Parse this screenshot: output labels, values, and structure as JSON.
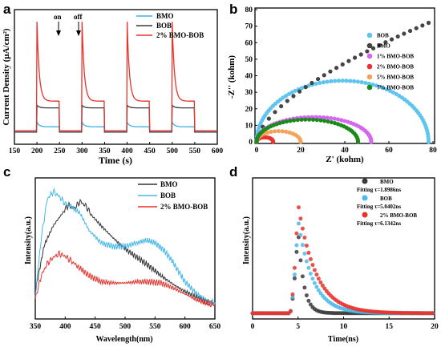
{
  "chart_data": [
    {
      "panel": "a",
      "type": "line",
      "xlabel": "Time (s)",
      "ylabel": "Current Density (μA/cm²)",
      "xlim": [
        150,
        600
      ],
      "xticks": [
        150,
        200,
        250,
        300,
        350,
        400,
        450,
        500,
        550,
        600
      ],
      "annotations": [
        "on",
        "off"
      ],
      "series": [
        {
          "name": "BMO",
          "color": "#3fb0e8",
          "base": 4.5,
          "plateau": 6.5,
          "spike": 8.2
        },
        {
          "name": "BOB",
          "color": "#3a3a3a",
          "base": 4.5,
          "plateau": 13.5,
          "spike": 14.5
        },
        {
          "name": "2% BMO-BOB",
          "color": "#e8322c",
          "base": 5.0,
          "plateau": 16.0,
          "spike": 45.5
        }
      ],
      "on_times": [
        200,
        300,
        400,
        500
      ],
      "off_times": [
        250,
        350,
        450,
        550
      ],
      "ylim": [
        0,
        50
      ]
    },
    {
      "panel": "b",
      "type": "scatter",
      "xlabel": "Z' (kohm)",
      "ylabel": "-Z'' (kohm)",
      "xlim": [
        0,
        80
      ],
      "ylim": [
        0,
        80
      ],
      "xticks": [
        0,
        20,
        40,
        60,
        80
      ],
      "yticks": [
        0,
        10,
        20,
        30,
        40,
        50,
        60,
        70,
        80
      ],
      "series": [
        {
          "name": "BOB",
          "color": "#5ec5f0",
          "shape": "semicircle",
          "R": 78,
          "hmax": 37
        },
        {
          "name": "BMO",
          "color": "#444444",
          "shape": "arc",
          "R": 80,
          "end_x": 78,
          "end_y": 72
        },
        {
          "name": "1% BMO-BOB",
          "color": "#d466f0",
          "shape": "semicircle",
          "R": 52,
          "hmax": 15
        },
        {
          "name": "2% BMO-BOB",
          "color": "#ee3030",
          "shape": "semicircle",
          "R": 7.5,
          "hmax": 2.8
        },
        {
          "name": "5% BMO-BOB",
          "color": "#f5a25a",
          "shape": "semicircle",
          "R": 20,
          "hmax": 6.5
        },
        {
          "name": "7% BMO-BOB",
          "color": "#1a8a1a",
          "shape": "semicircle",
          "R": 46,
          "hmax": 13.5
        }
      ]
    },
    {
      "panel": "c",
      "type": "line",
      "xlabel": "Wavelength(nm)",
      "ylabel": "Intensity(a.u.)",
      "xlim": [
        350,
        650
      ],
      "xticks": [
        350,
        400,
        450,
        500,
        550,
        600,
        650
      ],
      "series": [
        {
          "name": "BMO",
          "color": "#333333",
          "x": [
            350,
            365,
            380,
            395,
            405,
            415,
            425,
            435,
            445,
            460,
            480,
            500,
            520,
            540,
            560,
            580,
            600,
            620,
            640,
            650
          ],
          "y": [
            12,
            50,
            66,
            76,
            83,
            80,
            86,
            82,
            74,
            66,
            56,
            47,
            40,
            33,
            25,
            18,
            12,
            7,
            3,
            2
          ]
        },
        {
          "name": "BOB",
          "color": "#43b6ea",
          "x": [
            350,
            360,
            370,
            380,
            390,
            400,
            410,
            425,
            440,
            460,
            480,
            500,
            520,
            535,
            550,
            565,
            580,
            600,
            620,
            640,
            650
          ],
          "y": [
            8,
            56,
            88,
            94,
            90,
            84,
            82,
            76,
            62,
            52,
            49,
            49,
            52,
            54,
            52,
            46,
            36,
            20,
            10,
            4,
            3
          ]
        },
        {
          "name": "2% BMO-BOB",
          "color": "#e8322c",
          "x": [
            350,
            360,
            370,
            380,
            390,
            400,
            410,
            420,
            440,
            460,
            480,
            500,
            520,
            540,
            560,
            580,
            600,
            620,
            640,
            650
          ],
          "y": [
            6,
            25,
            35,
            40,
            43,
            41,
            37,
            33,
            25,
            20,
            19,
            19,
            20,
            20,
            19,
            15,
            10,
            5,
            2,
            1
          ]
        }
      ],
      "ylim": [
        0,
        100
      ]
    },
    {
      "panel": "d",
      "type": "scatter",
      "xlabel": "Time(ns)",
      "ylabel": "Intensity(a.u.)",
      "xlim": [
        0,
        20
      ],
      "xticks": [
        0,
        5,
        10,
        15,
        20
      ],
      "series": [
        {
          "name": "BMO",
          "color": "#3a3a3a",
          "fit_label": "Fitting  τ=1.8986ns",
          "tau": 1.8986,
          "peak": 0.78
        },
        {
          "name": "BOB",
          "color": "#4bbbec",
          "fit_label": "Fitting  τ=5.0402ns",
          "tau": 5.0402,
          "peak": 0.86
        },
        {
          "name": "2% BMO-BOB",
          "color": "#e8322c",
          "fit_label": "Fitting  τ=6.1342ns",
          "tau": 6.1342,
          "peak": 1.0
        }
      ],
      "peak_time": 5.0,
      "baseline": 0.05,
      "ylim": [
        0,
        1.2
      ]
    }
  ],
  "panel_labels": [
    "a",
    "b",
    "c",
    "d"
  ],
  "annot": {
    "on": "on",
    "off": "off"
  }
}
